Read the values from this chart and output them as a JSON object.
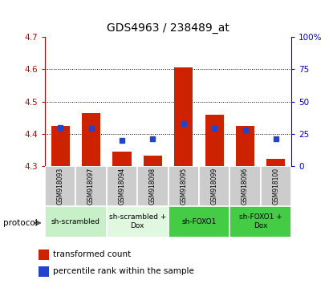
{
  "title": "GDS4963 / 238489_at",
  "samples": [
    "GSM918093",
    "GSM918097",
    "GSM918094",
    "GSM918098",
    "GSM918095",
    "GSM918099",
    "GSM918096",
    "GSM918100"
  ],
  "red_values": [
    4.425,
    4.465,
    4.345,
    4.333,
    4.605,
    4.46,
    4.425,
    4.323
  ],
  "blue_values": [
    30,
    29,
    20,
    21,
    33,
    29,
    28,
    21
  ],
  "ylim_left": [
    4.3,
    4.7
  ],
  "ylim_right": [
    0,
    100
  ],
  "yticks_left": [
    4.3,
    4.4,
    4.5,
    4.6,
    4.7
  ],
  "yticks_right": [
    0,
    25,
    50,
    75,
    100
  ],
  "ytick_labels_right": [
    "0",
    "25",
    "50",
    "75",
    "100%"
  ],
  "bar_baseline": 4.3,
  "protocol_groups": [
    {
      "label": "sh-scrambled",
      "start": 0,
      "end": 2,
      "color": "#c8f0c8"
    },
    {
      "label": "sh-scrambled +\nDox",
      "start": 2,
      "end": 4,
      "color": "#e0f8e0"
    },
    {
      "label": "sh-FOXO1",
      "start": 4,
      "end": 6,
      "color": "#44cc44"
    },
    {
      "label": "sh-FOXO1 +\nDox",
      "start": 6,
      "end": 8,
      "color": "#44cc44"
    }
  ],
  "red_color": "#cc2200",
  "blue_color": "#2244cc",
  "bar_width": 0.6,
  "sample_bg": "#cccccc",
  "legend_red": "transformed count",
  "legend_blue": "percentile rank within the sample"
}
